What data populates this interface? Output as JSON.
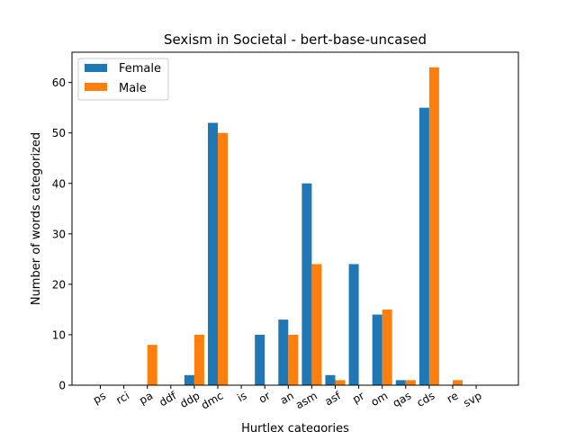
{
  "chart_data": {
    "type": "bar",
    "title": "Sexism in Societal - bert-base-uncased",
    "xlabel": "Hurtlex categories",
    "ylabel": "Number of words categorized",
    "categories": [
      "ps",
      "rci",
      "pa",
      "ddf",
      "ddp",
      "dmc",
      "is",
      "or",
      "an",
      "asm",
      "asf",
      "pr",
      "om",
      "qas",
      "cds",
      "re",
      "svp"
    ],
    "series": [
      {
        "name": "Female",
        "color": "#1f77b4",
        "values": [
          0,
          0,
          0,
          0,
          2,
          52,
          0,
          10,
          13,
          40,
          2,
          24,
          14,
          1,
          55,
          0,
          0
        ]
      },
      {
        "name": "Male",
        "color": "#ff7f0e",
        "values": [
          0,
          0,
          8,
          0,
          10,
          50,
          0,
          0,
          10,
          24,
          1,
          0,
          15,
          1,
          63,
          1,
          0
        ]
      }
    ],
    "ylim": [
      0,
      66
    ],
    "yticks": [
      0,
      10,
      20,
      30,
      40,
      50,
      60
    ],
    "grid": false,
    "legend": "upper-left"
  }
}
